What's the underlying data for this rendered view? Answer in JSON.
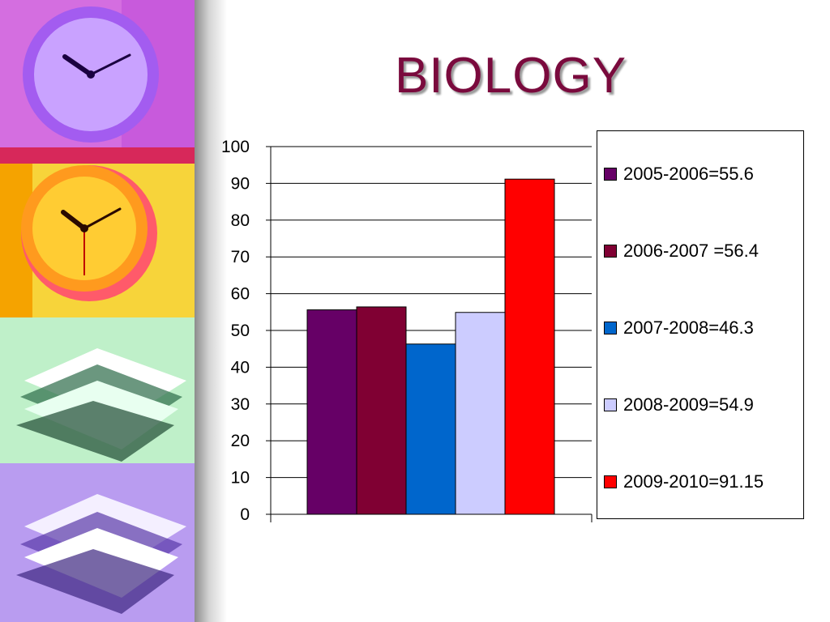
{
  "slide": {
    "title": "BIOLOGY"
  },
  "decor": {
    "panels": [
      {
        "name": "purple-clock-panel",
        "bg": "#d46ee0",
        "icon": "clock-icon"
      },
      {
        "name": "orange-clock-panel",
        "bg": "#f7d43a",
        "icon": "clock-icon"
      },
      {
        "name": "green-books-panel",
        "bg": "#bff0c9",
        "icon": "books-icon"
      },
      {
        "name": "violet-books-panel",
        "bg": "#b99cf0",
        "icon": "books-icon"
      }
    ]
  },
  "chart_data": {
    "type": "bar",
    "title": "",
    "xlabel": "",
    "ylabel": "",
    "ylim": [
      0,
      100
    ],
    "yticks": [
      "0",
      "10",
      "20",
      "30",
      "40",
      "50",
      "60",
      "70",
      "80",
      "90",
      "100"
    ],
    "grid": true,
    "legend_position": "right",
    "series": [
      {
        "name": "2005-2006=55.6",
        "value": 55.6,
        "color": "#660066"
      },
      {
        "name": "2006-2007 =56.4",
        "value": 56.4,
        "color": "#800033"
      },
      {
        "name": "2007-2008=46.3",
        "value": 46.3,
        "color": "#0066cc"
      },
      {
        "name": "2008-2009=54.9",
        "value": 54.9,
        "color": "#ccccff"
      },
      {
        "name": "2009-2010=91.15",
        "value": 91.15,
        "color": "#ff0000"
      }
    ]
  }
}
